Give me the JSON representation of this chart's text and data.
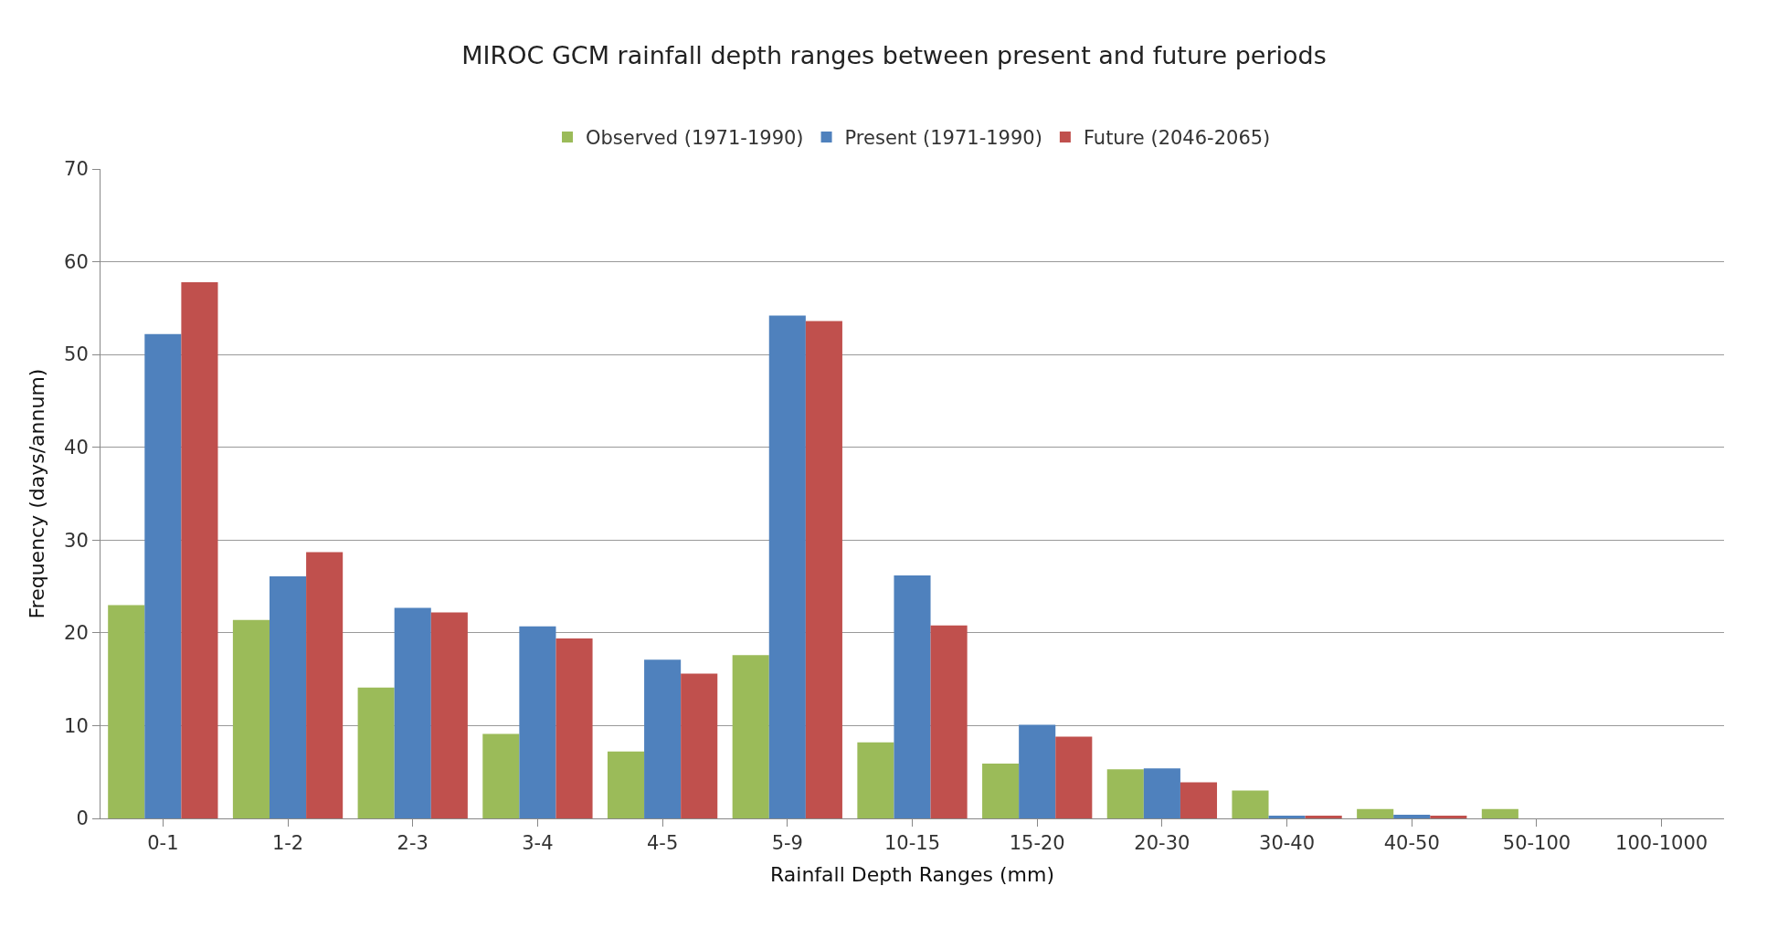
{
  "chart_data": {
    "type": "bar",
    "title": "MIROC GCM rainfall depth ranges between present and future periods",
    "xlabel": "Rainfall Depth Ranges (mm)",
    "ylabel": "Frequency (days/annum)",
    "categories": [
      "0-1",
      "1-2",
      "2-3",
      "3-4",
      "4-5",
      "5-9",
      "10-15",
      "15-20",
      "20-30",
      "30-40",
      "40-50",
      "50-100",
      "100-1000"
    ],
    "series": [
      {
        "name": "Observed (1971-1990)",
        "color": "#9bbb59",
        "values": [
          23,
          21.4,
          14.1,
          9.1,
          7.2,
          17.6,
          8.2,
          5.9,
          5.3,
          3.0,
          1.0,
          1.0,
          0
        ]
      },
      {
        "name": "Present (1971-1990)",
        "color": "#4f81bd",
        "values": [
          52.2,
          26.1,
          22.7,
          20.7,
          17.1,
          54.2,
          26.2,
          10.1,
          5.4,
          0.3,
          0.4,
          0,
          0
        ]
      },
      {
        "name": "Future (2046-2065)",
        "color": "#c0504d",
        "values": [
          57.8,
          28.7,
          22.2,
          19.4,
          15.6,
          53.6,
          20.8,
          8.8,
          3.9,
          0.3,
          0.3,
          0,
          0
        ]
      }
    ],
    "ylim": [
      0,
      70
    ],
    "yticks": [
      0,
      10,
      20,
      30,
      40,
      50,
      60,
      70
    ],
    "grid": "y",
    "legend": "top"
  }
}
